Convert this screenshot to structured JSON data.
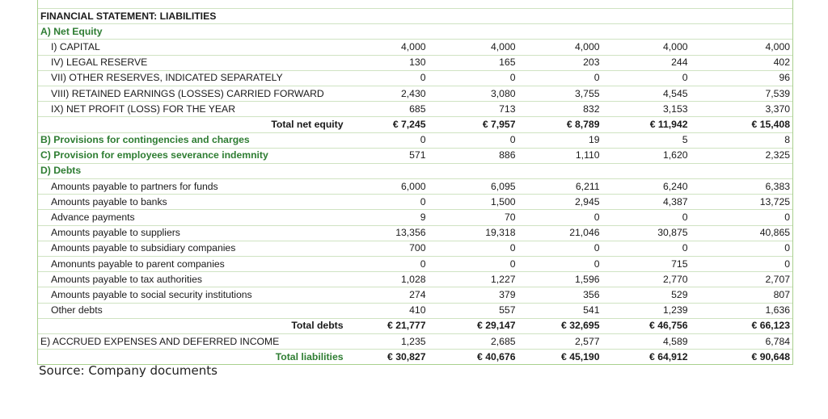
{
  "title": "FINANCIAL STATEMENT: LIABILITIES",
  "source": "Source: Company documents",
  "rows": [
    {
      "label": "A) Net Equity",
      "style": "green",
      "values": [
        "",
        "",
        "",
        "",
        ""
      ]
    },
    {
      "label": "I) CAPITAL",
      "style": "ind1",
      "values": [
        "4,000",
        "4,000",
        "4,000",
        "4,000",
        "4,000"
      ]
    },
    {
      "label": "IV) LEGAL RESERVE",
      "style": "ind1",
      "values": [
        "130",
        "165",
        "203",
        "244",
        "402"
      ]
    },
    {
      "label": "VII) OTHER RESERVES, INDICATED SEPARATELY",
      "style": "ind1",
      "values": [
        "0",
        "0",
        "0",
        "0",
        "96"
      ]
    },
    {
      "label": "VIII) RETAINED EARNINGS (LOSSES) CARRIED FORWARD",
      "style": "ind1",
      "values": [
        "2,430",
        "3,080",
        "3,755",
        "4,545",
        "7,539"
      ]
    },
    {
      "label": "IX) NET PROFIT (LOSS) FOR THE YEAR",
      "style": "ind1",
      "values": [
        "685",
        "713",
        "832",
        "3,153",
        "3,370"
      ]
    },
    {
      "label": "Total net equity",
      "style": "total",
      "values": [
        "€ 7,245",
        "€ 7,957",
        "€ 8,789",
        "€ 11,942",
        "€ 15,408"
      ]
    },
    {
      "label": "B) Provisions for contingencies and charges",
      "style": "green",
      "values": [
        "0",
        "0",
        "19",
        "5",
        "8"
      ]
    },
    {
      "label": "C) Provision for employees severance indemnity",
      "style": "green",
      "values": [
        "571",
        "886",
        "1,110",
        "1,620",
        "2,325"
      ]
    },
    {
      "label": "D) Debts",
      "style": "green",
      "values": [
        "",
        "",
        "",
        "",
        ""
      ]
    },
    {
      "label": "Amounts payable to partners for funds",
      "style": "ind2",
      "values": [
        "6,000",
        "6,095",
        "6,211",
        "6,240",
        "6,383"
      ]
    },
    {
      "label": "Amounts payable to banks",
      "style": "ind2",
      "values": [
        "0",
        "1,500",
        "2,945",
        "4,387",
        "13,725"
      ]
    },
    {
      "label": "Advance payments",
      "style": "ind2",
      "values": [
        "9",
        "70",
        "0",
        "0",
        "0"
      ]
    },
    {
      "label": "Amounts payable to suppliers",
      "style": "ind2",
      "values": [
        "13,356",
        "19,318",
        "21,046",
        "30,875",
        "40,865"
      ]
    },
    {
      "label": "Amounts payable to subsidiary companies",
      "style": "ind2",
      "values": [
        "700",
        "0",
        "0",
        "0",
        "0"
      ]
    },
    {
      "label": "Amonunts payable to parent companies",
      "style": "ind2",
      "values": [
        "0",
        "0",
        "0",
        "715",
        "0"
      ]
    },
    {
      "label": "Amounts payable to tax authorities",
      "style": "ind2",
      "values": [
        "1,028",
        "1,227",
        "1,596",
        "2,770",
        "2,707"
      ]
    },
    {
      "label": "Amounts payable to social security institutions",
      "style": "ind2",
      "values": [
        "274",
        "379",
        "356",
        "529",
        "807"
      ]
    },
    {
      "label": "Other debts",
      "style": "ind2",
      "values": [
        "410",
        "557",
        "541",
        "1,239",
        "1,636"
      ]
    },
    {
      "label": "Total debts",
      "style": "total",
      "values": [
        "€ 21,777",
        "€ 29,147",
        "€ 32,695",
        "€ 46,756",
        "€ 66,123"
      ]
    },
    {
      "label": "E) ACCRUED EXPENSES AND DEFERRED INCOME",
      "style": "plain",
      "values": [
        "1,235",
        "2,685",
        "2,577",
        "4,589",
        "6,784"
      ]
    },
    {
      "label": "Total liabilities",
      "style": "grandtotal",
      "values": [
        "€ 30,827",
        "€ 40,676",
        "€ 45,190",
        "€ 64,912",
        "€ 90,648"
      ]
    }
  ]
}
